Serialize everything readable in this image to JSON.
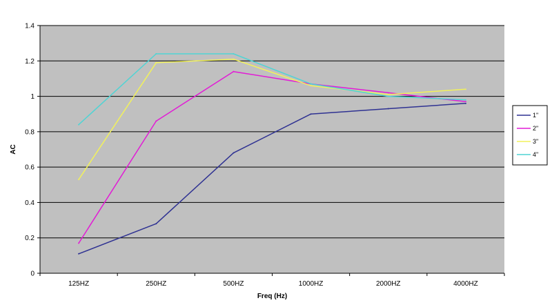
{
  "chart_data": {
    "type": "line",
    "title": "",
    "xlabel": "Freq (Hz)",
    "ylabel": "AC",
    "categories": [
      "125HZ",
      "250HZ",
      "500HZ",
      "1000HZ",
      "2000HZ",
      "4000HZ"
    ],
    "ylim": [
      0,
      1.4
    ],
    "yticks": [
      "0",
      "0.2",
      "0.4",
      "0.6",
      "0.8",
      "1",
      "1.2",
      "1.4"
    ],
    "grid": true,
    "legend": "right",
    "plot_background": "#c0c0c0",
    "series": [
      {
        "name": "1\"",
        "color": "#2e3192",
        "values": [
          0.11,
          0.28,
          0.68,
          0.9,
          0.93,
          0.96
        ]
      },
      {
        "name": "2\"",
        "color": "#e21ad6",
        "values": [
          0.17,
          0.86,
          1.14,
          1.07,
          1.02,
          0.97
        ]
      },
      {
        "name": "3\"",
        "color": "#f2f25a",
        "values": [
          0.53,
          1.19,
          1.21,
          1.06,
          1.01,
          1.04
        ]
      },
      {
        "name": "4\"",
        "color": "#4fd4d4",
        "values": [
          0.84,
          1.24,
          1.24,
          1.07,
          1.0,
          0.98
        ]
      }
    ]
  }
}
